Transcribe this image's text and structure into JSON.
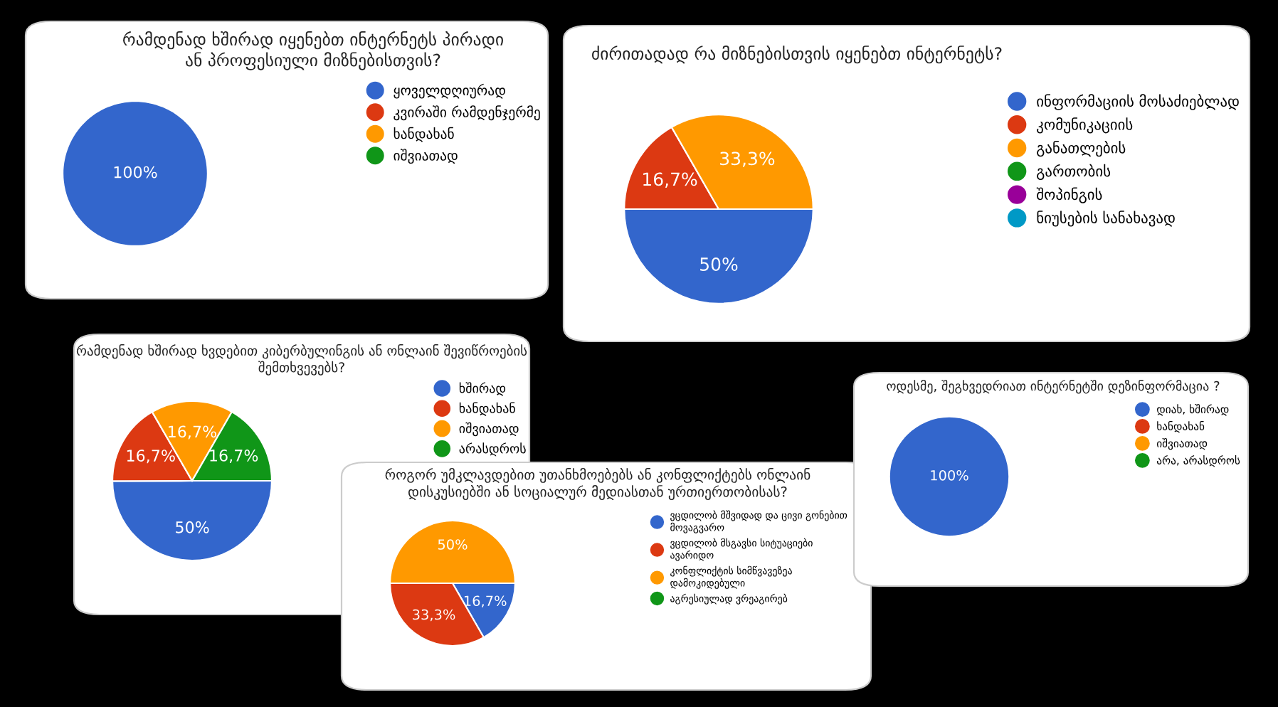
{
  "chart_data": [
    {
      "type": "pie",
      "title": "რამდენად ხშირად იყენებთ ინტერნეტს პირადი\nან პროფესიული მიზნებისთვის?",
      "categories": [
        "ყოველდღიურად",
        "კვირაში რამდენჯერმე",
        "ხანდახან",
        "იშვიათად"
      ],
      "values": [
        100,
        0,
        0,
        0
      ],
      "colors": [
        "#3366cc",
        "#dc3912",
        "#ff9900",
        "#109618"
      ],
      "value_labels": [
        "100%",
        null,
        null,
        null
      ],
      "legend": "right"
    },
    {
      "type": "pie",
      "title": "ძირითადად რა მიზნებისთვის იყენებთ ინტერნეტს?",
      "categories": [
        "ინფორმაციის მოსაძიებლად",
        "კომუნიკაციის",
        "განათლების",
        "გართობის",
        "შოპინგის",
        "ნიუსების სანახავად"
      ],
      "values": [
        50,
        16.7,
        33.3,
        0,
        0,
        0
      ],
      "colors": [
        "#3366cc",
        "#dc3912",
        "#ff9900",
        "#109618",
        "#990099",
        "#0099c6"
      ],
      "value_labels": [
        "50%",
        "16,7%",
        "33,3%",
        null,
        null,
        null
      ],
      "legend": "right"
    },
    {
      "type": "pie",
      "title": "რამდენად ხშირად ხვდებით კიბერბულინგის ან ონლაინ შევიწროების\nშემთხვევებს?",
      "categories": [
        "ხშირად",
        "ხანდახან",
        "იშვიათად",
        "არასდროს"
      ],
      "values": [
        50,
        16.7,
        16.7,
        16.7
      ],
      "colors": [
        "#3366cc",
        "#dc3912",
        "#ff9900",
        "#109618"
      ],
      "value_labels": [
        "50%",
        "16,7%",
        "16,7%",
        "16,7%"
      ],
      "legend": "right"
    },
    {
      "type": "pie",
      "title": "როგორ უმკლავდებით უთანხმოებებს ან კონფლიქტებს ონლაინ\nდისკუსიებში ან სოციალურ მედიასთან ურთიერთობისას?",
      "categories": [
        "ვცდილობ მშვიდად და ცივი გონებით\nმოვაგვარო",
        "ვცდილობ მსგავსი სიტუაციები\nავარიდო",
        "კონფლიქტის სიმწვავეზეა\nდამოკიდებული",
        "აგრესიულად ვრეაგირებ"
      ],
      "values": [
        16.7,
        33.3,
        50,
        0
      ],
      "colors": [
        "#3366cc",
        "#dc3912",
        "#ff9900",
        "#109618"
      ],
      "value_labels": [
        "16,7%",
        "33,3%",
        "50%",
        null
      ],
      "legend": "right"
    },
    {
      "type": "pie",
      "title": "ოდესმე, შეგხვედრიათ ინტერნეტში დეზინფორმაცია ?",
      "categories": [
        "დიახ, ხშირად",
        "ხანდახან",
        "იშვიათად",
        "არა, არასდროს"
      ],
      "values": [
        100,
        0,
        0,
        0
      ],
      "colors": [
        "#3366cc",
        "#dc3912",
        "#ff9900",
        "#109618"
      ],
      "value_labels": [
        "100%",
        null,
        null,
        null
      ],
      "legend": "right"
    }
  ]
}
